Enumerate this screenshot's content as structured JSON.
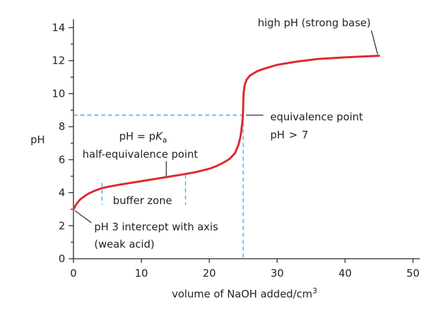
{
  "chart_data": {
    "type": "line",
    "title": "",
    "xlabel": "volume of NaOH added/cm",
    "xlabel_superscript": "3",
    "ylabel": "pH",
    "xlim": [
      0,
      50
    ],
    "ylim": [
      0,
      14
    ],
    "xticks": [
      "0",
      "10",
      "20",
      "30",
      "40",
      "50"
    ],
    "yticks": [
      "0",
      "2",
      "4",
      "6",
      "8",
      "10",
      "12",
      "14"
    ],
    "grid": false,
    "colors": {
      "curve": "#e0282e",
      "guide": "#3aa7e0",
      "axis": "#222222"
    },
    "series": [
      {
        "x": [
          0,
          0.5,
          1,
          2,
          3,
          4,
          5,
          7,
          10,
          13,
          16,
          18,
          20,
          21,
          22,
          23,
          23.8,
          24.3,
          24.6,
          24.8,
          24.95,
          25,
          25.05,
          25.2,
          25.5,
          26,
          27,
          28,
          30,
          33,
          36,
          40,
          45
        ],
        "y": [
          3.0,
          3.35,
          3.6,
          3.9,
          4.1,
          4.25,
          4.35,
          4.5,
          4.7,
          4.9,
          5.1,
          5.25,
          5.45,
          5.6,
          5.8,
          6.05,
          6.4,
          6.9,
          7.4,
          8.0,
          8.6,
          9.3,
          10.0,
          10.5,
          10.85,
          11.1,
          11.35,
          11.5,
          11.75,
          11.95,
          12.1,
          12.2,
          12.3
        ]
      }
    ],
    "guides": {
      "equivalence_volume": 25,
      "equivalence_ph": 8.7,
      "buffer_zone_start": 4.2,
      "buffer_zone_end": 16.5
    },
    "annotations": {
      "high_ph": "high pH (strong base)",
      "equivalence_line1": "equivalence point",
      "equivalence_line2_prefix": "pH",
      "equivalence_line2_symbol": ">",
      "equivalence_line2_value": "7",
      "pka_prefix": "pH = p",
      "pka_k": "K",
      "pka_sub": "a",
      "half_equivalence": "half-equivalence point",
      "buffer_zone": "buffer zone",
      "intercept_line1": "pH 3 intercept with axis",
      "intercept_line2": "(weak acid)"
    }
  }
}
